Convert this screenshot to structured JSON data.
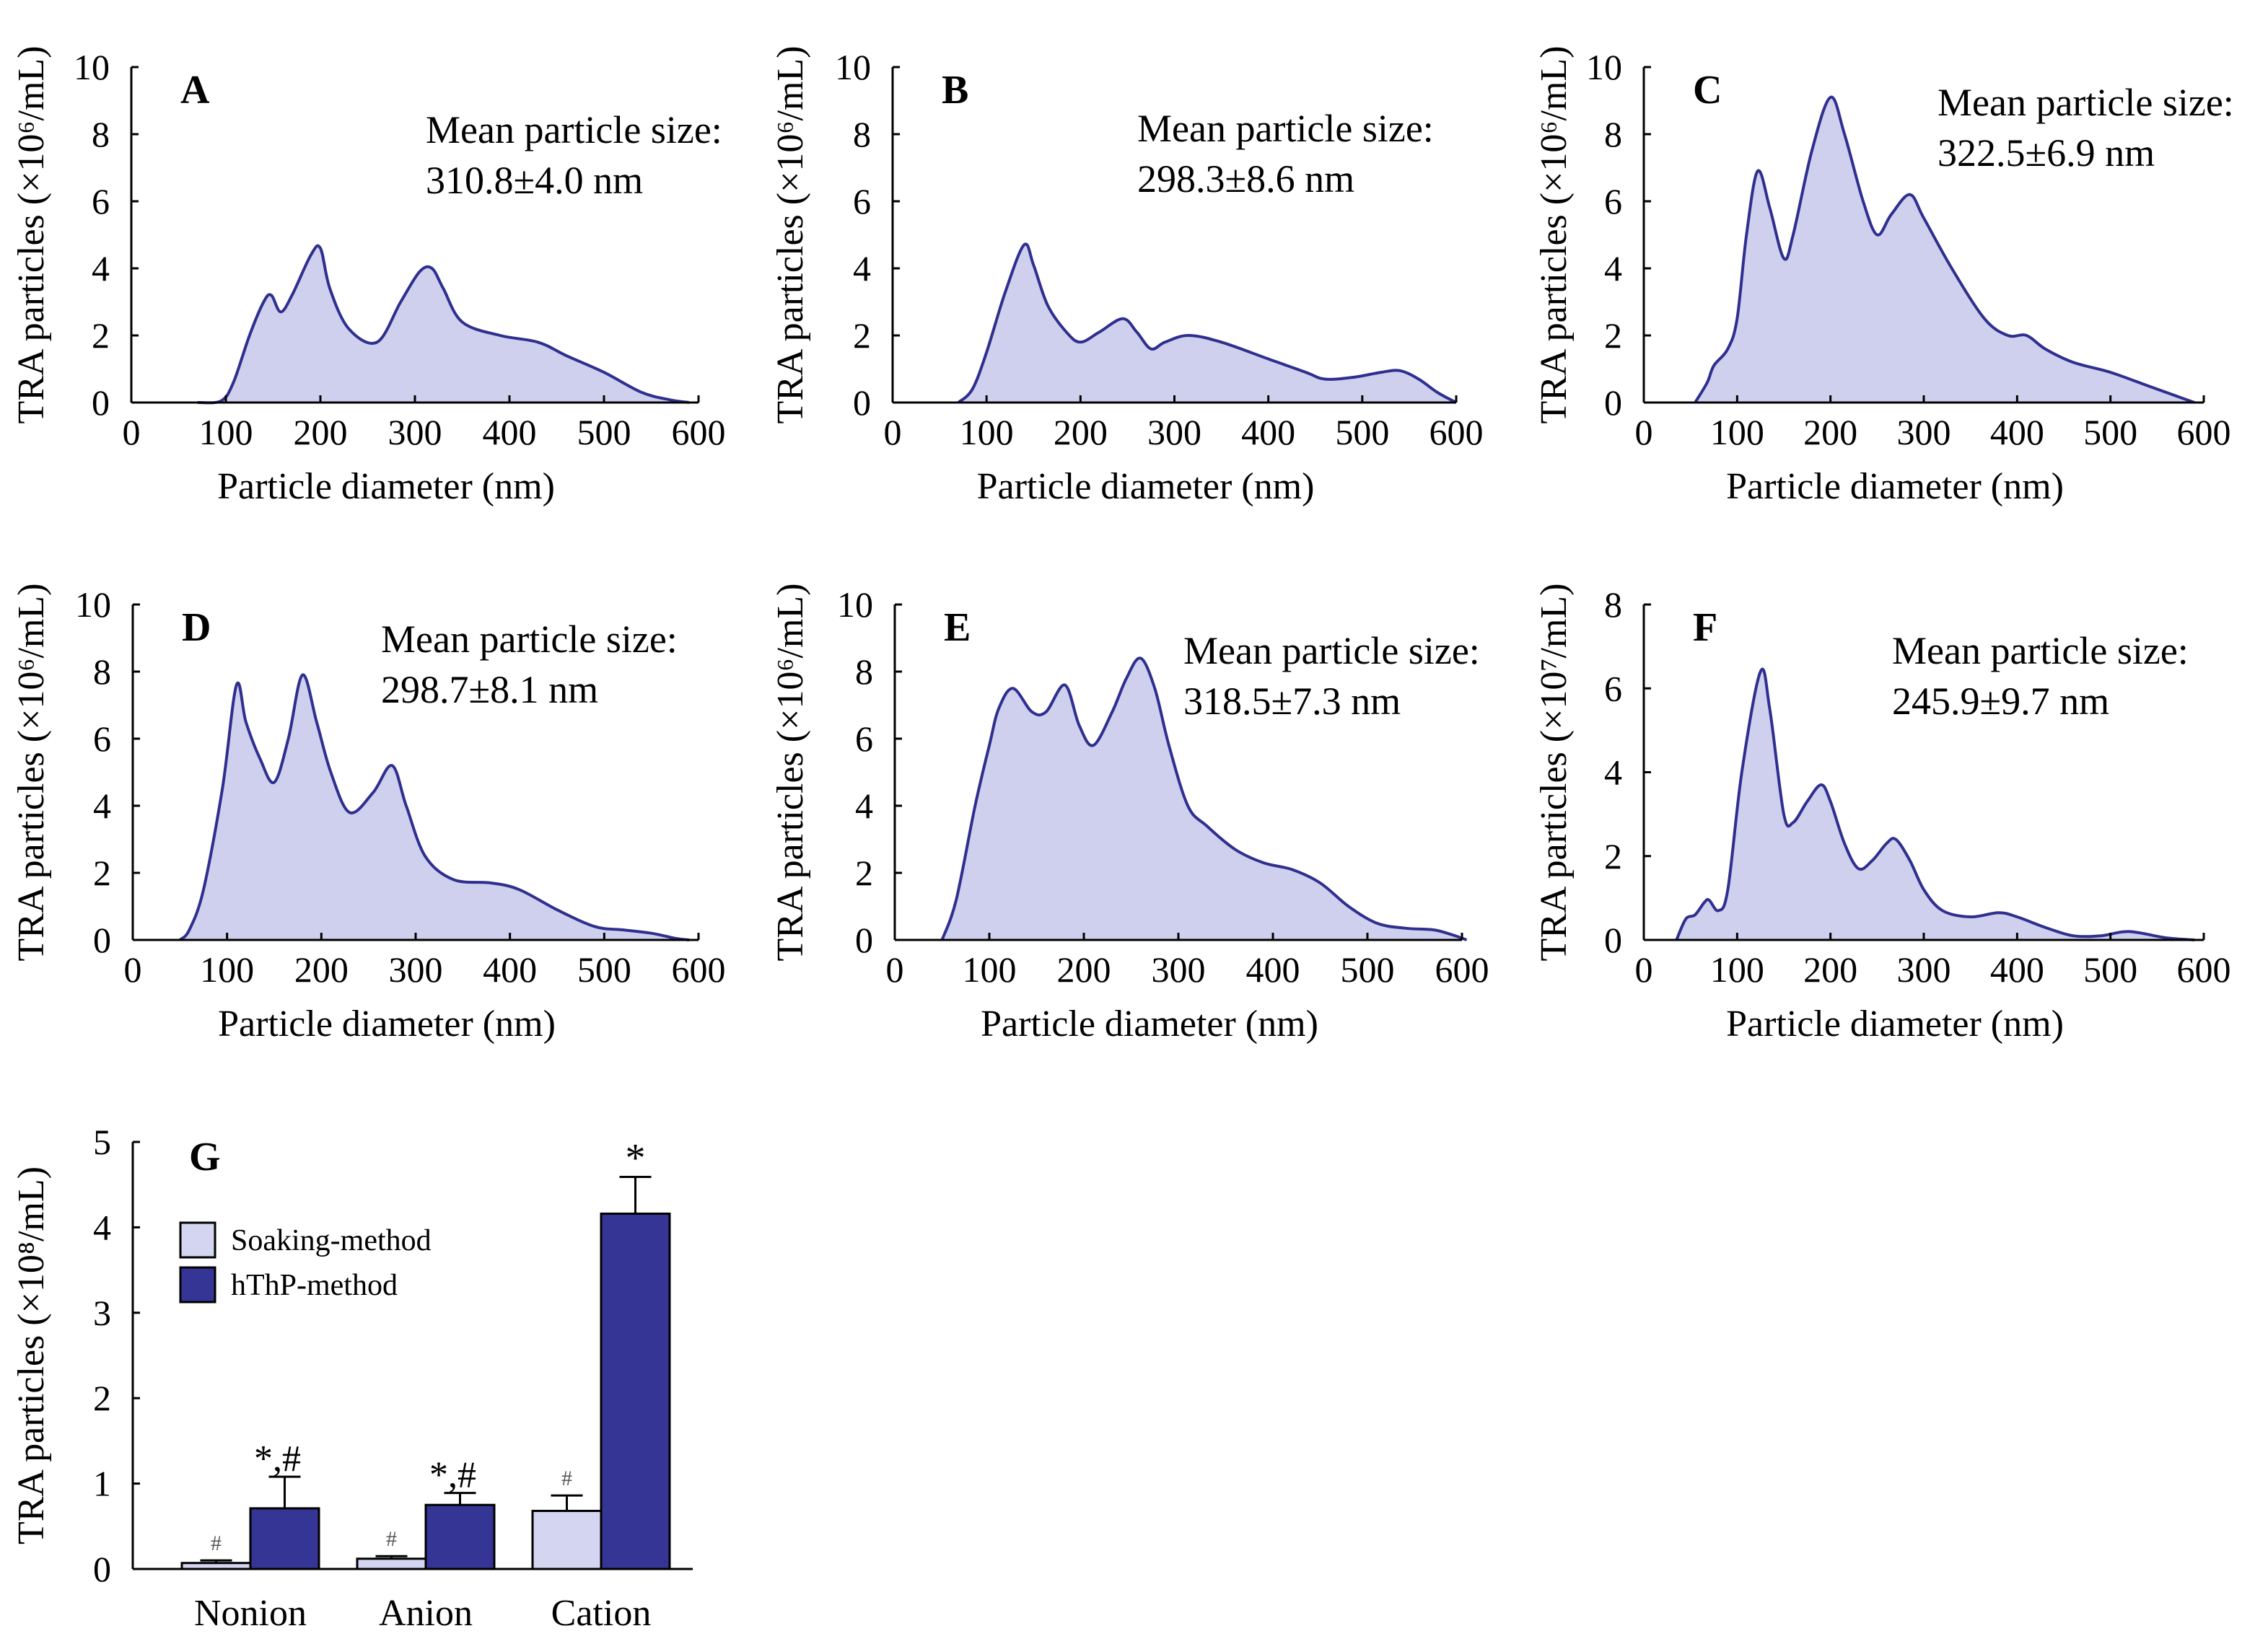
{
  "colors": {
    "fill": "#cfd0ee",
    "line": "#2f2f8f",
    "bar_soak": "#d4d5f0",
    "bar_hthp": "#353595",
    "axis": "#000000"
  },
  "chart_data": [
    {
      "type": "area",
      "panel": "A",
      "xlabel": "Particle diameter (nm)",
      "ylabel": "TRA particles (×10⁶/mL)",
      "xlim": [
        0,
        600
      ],
      "ylim": [
        0,
        10
      ],
      "xticks": [
        0,
        100,
        200,
        300,
        400,
        500,
        600
      ],
      "yticks": [
        0,
        2,
        4,
        6,
        8,
        10
      ],
      "annotation": [
        "Mean particle size:",
        "310.8±4.0 nm"
      ],
      "x": [
        70,
        95,
        108,
        125,
        140,
        148,
        158,
        170,
        190,
        200,
        210,
        230,
        260,
        285,
        305,
        318,
        330,
        350,
        390,
        430,
        460,
        500,
        540,
        570,
        590
      ],
      "y": [
        0,
        0.05,
        0.6,
        2.0,
        3.0,
        3.2,
        2.7,
        3.2,
        4.4,
        4.6,
        3.4,
        2.2,
        1.8,
        3.0,
        3.9,
        4.0,
        3.4,
        2.4,
        2.0,
        1.8,
        1.4,
        0.9,
        0.3,
        0.08,
        0
      ]
    },
    {
      "type": "area",
      "panel": "B",
      "xlabel": "Particle diameter (nm)",
      "ylabel": "TRA particles (×10⁶/mL)",
      "xlim": [
        0,
        600
      ],
      "ylim": [
        0,
        10
      ],
      "xticks": [
        0,
        100,
        200,
        300,
        400,
        500,
        600
      ],
      "yticks": [
        0,
        2,
        4,
        6,
        8,
        10
      ],
      "annotation": [
        "Mean particle size:",
        "298.3±8.6 nm"
      ],
      "x": [
        70,
        85,
        100,
        120,
        140,
        150,
        165,
        185,
        200,
        220,
        245,
        260,
        275,
        290,
        315,
        350,
        400,
        440,
        460,
        490,
        520,
        540,
        560,
        580,
        600
      ],
      "y": [
        0,
        0.4,
        1.5,
        3.3,
        4.7,
        4.1,
        2.9,
        2.1,
        1.8,
        2.1,
        2.5,
        2.1,
        1.6,
        1.8,
        2.0,
        1.8,
        1.3,
        0.9,
        0.7,
        0.75,
        0.9,
        0.95,
        0.7,
        0.3,
        0
      ]
    },
    {
      "type": "area",
      "panel": "C",
      "xlabel": "Particle diameter (nm)",
      "ylabel": "TRA particles (×10⁶/mL)",
      "xlim": [
        0,
        600
      ],
      "ylim": [
        0,
        10
      ],
      "xticks": [
        0,
        100,
        200,
        300,
        400,
        500,
        600
      ],
      "yticks": [
        0,
        2,
        4,
        6,
        8,
        10
      ],
      "annotation": [
        "Mean particle size:",
        "322.5±6.9 nm"
      ],
      "x": [
        55,
        68,
        75,
        90,
        100,
        110,
        122,
        135,
        150,
        160,
        180,
        200,
        215,
        235,
        250,
        265,
        285,
        300,
        330,
        365,
        390,
        410,
        430,
        460,
        500,
        540,
        570,
        590
      ],
      "y": [
        0,
        0.6,
        1.1,
        1.6,
        2.5,
        5.0,
        6.9,
        5.8,
        4.3,
        5.0,
        7.5,
        9.1,
        8.0,
        6.0,
        5.0,
        5.6,
        6.2,
        5.5,
        4.0,
        2.5,
        2.0,
        2.0,
        1.6,
        1.2,
        0.9,
        0.5,
        0.2,
        0
      ]
    },
    {
      "type": "area",
      "panel": "D",
      "xlabel": "Particle diameter (nm)",
      "ylabel": "TRA particles (×10⁶/mL)",
      "xlim": [
        0,
        600
      ],
      "ylim": [
        0,
        10
      ],
      "xticks": [
        0,
        100,
        200,
        300,
        400,
        500,
        600
      ],
      "yticks": [
        0,
        2,
        4,
        6,
        8,
        10
      ],
      "annotation": [
        "Mean particle size:",
        "298.7±8.1 nm"
      ],
      "x": [
        50,
        60,
        75,
        95,
        110,
        120,
        135,
        150,
        165,
        180,
        195,
        210,
        230,
        255,
        275,
        290,
        310,
        340,
        380,
        410,
        450,
        490,
        520,
        550,
        575,
        590
      ],
      "y": [
        0,
        0.3,
        1.5,
        4.5,
        7.6,
        6.5,
        5.4,
        4.7,
        6.0,
        7.9,
        6.5,
        5.0,
        3.8,
        4.4,
        5.2,
        4.0,
        2.5,
        1.8,
        1.7,
        1.5,
        0.9,
        0.4,
        0.3,
        0.2,
        0.05,
        0
      ]
    },
    {
      "type": "area",
      "panel": "E",
      "xlabel": "Particle diameter (nm)",
      "ylabel": "TRA particles (×10⁶/mL)",
      "xlim": [
        0,
        600
      ],
      "ylim": [
        0,
        10
      ],
      "xticks": [
        0,
        100,
        200,
        300,
        400,
        500,
        600
      ],
      "yticks": [
        0,
        2,
        4,
        6,
        8,
        10
      ],
      "annotation": [
        "Mean particle size:",
        "318.5±7.3 nm"
      ],
      "x": [
        50,
        65,
        85,
        100,
        110,
        125,
        145,
        160,
        180,
        195,
        210,
        230,
        245,
        260,
        275,
        290,
        310,
        330,
        360,
        390,
        420,
        450,
        480,
        510,
        540,
        570,
        590,
        605
      ],
      "y": [
        0,
        1.2,
        4.0,
        5.8,
        6.9,
        7.5,
        6.8,
        6.8,
        7.6,
        6.4,
        5.8,
        6.8,
        7.8,
        8.4,
        7.5,
        5.8,
        4.0,
        3.4,
        2.7,
        2.3,
        2.1,
        1.7,
        1.0,
        0.5,
        0.35,
        0.3,
        0.15,
        0
      ]
    },
    {
      "type": "area",
      "panel": "F",
      "xlabel": "Particle diameter (nm)",
      "ylabel": "TRA particles (×10⁷/mL)",
      "xlim": [
        0,
        600
      ],
      "ylim": [
        0,
        8
      ],
      "xticks": [
        0,
        100,
        200,
        300,
        400,
        500,
        600
      ],
      "yticks": [
        0,
        2,
        4,
        6,
        8
      ],
      "annotation": [
        "Mean particle size:",
        "245.9±9.7 nm"
      ],
      "x": [
        35,
        45,
        55,
        65,
        70,
        80,
        90,
        105,
        125,
        135,
        150,
        160,
        175,
        190,
        200,
        215,
        230,
        245,
        260,
        270,
        285,
        300,
        320,
        350,
        380,
        400,
        430,
        460,
        490,
        520,
        560,
        590
      ],
      "y": [
        0,
        0.5,
        0.6,
        0.9,
        0.95,
        0.7,
        1.2,
        4.0,
        6.4,
        5.5,
        3.0,
        2.8,
        3.3,
        3.7,
        3.3,
        2.3,
        1.7,
        1.9,
        2.3,
        2.4,
        1.9,
        1.2,
        0.7,
        0.55,
        0.65,
        0.55,
        0.3,
        0.1,
        0.1,
        0.2,
        0.05,
        0
      ]
    },
    {
      "type": "bar",
      "panel": "G",
      "xlabel": "",
      "ylabel": "TRA particles (×10⁸/mL)",
      "ylim": [
        0,
        5
      ],
      "yticks": [
        0,
        1,
        2,
        3,
        4,
        5
      ],
      "categories": [
        "Nonion",
        "Anion",
        "Cation"
      ],
      "series": [
        {
          "name": "Soaking-method",
          "values": [
            0.07,
            0.12,
            0.68
          ],
          "errors": [
            0.03,
            0.03,
            0.18
          ],
          "marks": [
            "#",
            "#",
            "#"
          ]
        },
        {
          "name": "hThP-method",
          "values": [
            0.71,
            0.75,
            4.16
          ],
          "errors": [
            0.37,
            0.14,
            0.43
          ],
          "marks": [
            "*,#",
            "*,#",
            "*"
          ]
        }
      ]
    }
  ]
}
